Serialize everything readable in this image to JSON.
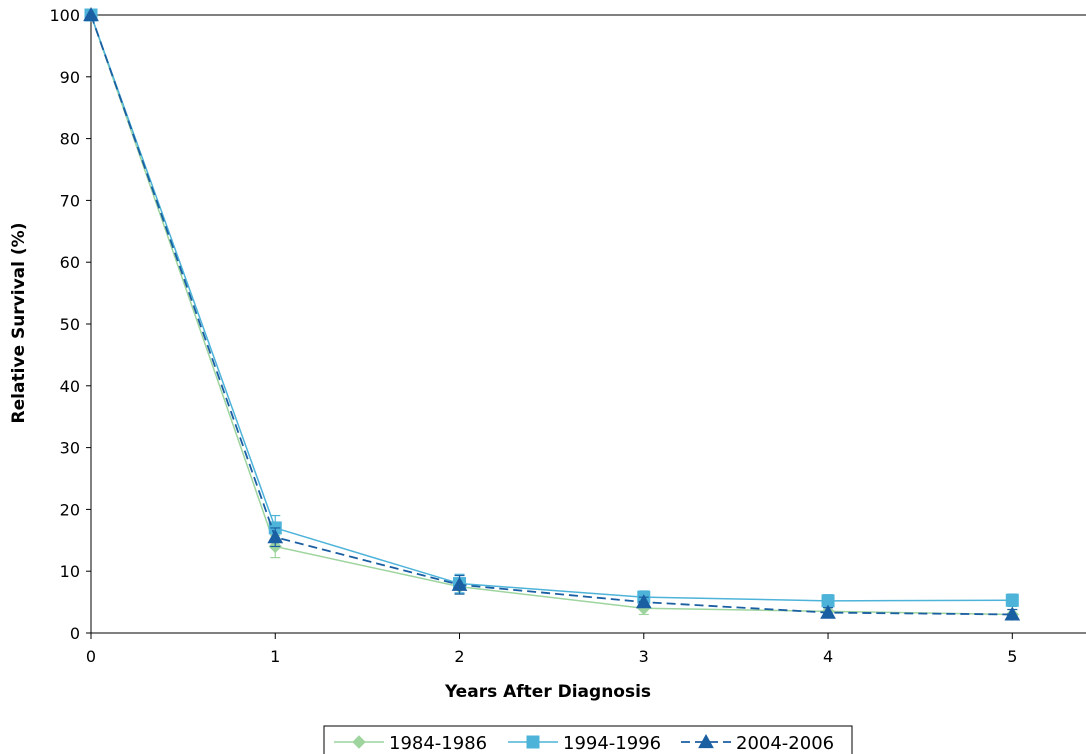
{
  "chart_data": {
    "type": "line",
    "title": "",
    "xlabel": "Years After Diagnosis",
    "ylabel": "Relative Survival (%)",
    "x": [
      0,
      1,
      2,
      3,
      4,
      5
    ],
    "xlim": [
      0,
      5.4
    ],
    "ylim": [
      0,
      100
    ],
    "xticks": [
      "0",
      "1",
      "2",
      "3",
      "4",
      "5"
    ],
    "yticks": [
      "0",
      "10",
      "20",
      "30",
      "40",
      "50",
      "60",
      "70",
      "80",
      "90",
      "100"
    ],
    "grid": false,
    "legend_position": "bottom",
    "series": [
      {
        "name": "1984-1986",
        "values": [
          100,
          14,
          7.5,
          4,
          3.5,
          3
        ],
        "error": [
          0,
          1.8,
          1.2,
          1.0,
          0.8,
          0.8
        ],
        "color": "#9ed49e",
        "marker": "diamond",
        "dash": false
      },
      {
        "name": "1994-1996",
        "values": [
          100,
          17,
          8,
          5.8,
          5.2,
          5.3
        ],
        "error": [
          0,
          2.0,
          1.5,
          1.0,
          1.0,
          1.0
        ],
        "color": "#4db3d9",
        "marker": "square",
        "dash": false
      },
      {
        "name": "2004-2006",
        "values": [
          100,
          15.5,
          7.8,
          5,
          3.3,
          3
        ],
        "error": [
          0,
          1.5,
          1.5,
          0.8,
          0.8,
          0.8
        ],
        "color": "#1b5fa3",
        "marker": "triangle",
        "dash": true
      }
    ]
  }
}
